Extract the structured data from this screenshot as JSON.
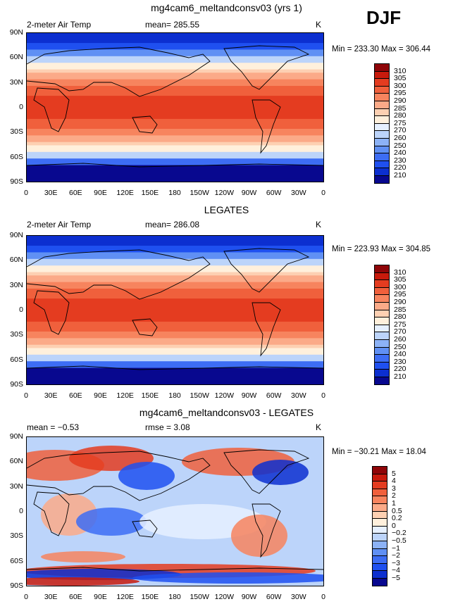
{
  "season": "DJF",
  "lat_ticks": [
    "90N",
    "60N",
    "30N",
    "0",
    "30S",
    "60S",
    "90S"
  ],
  "lon_ticks": [
    "0",
    "30E",
    "60E",
    "90E",
    "120E",
    "150E",
    "180",
    "150W",
    "120W",
    "90W",
    "60W",
    "30W",
    "0"
  ],
  "colors": {
    "abs_levels": [
      "#08088f",
      "#0c2fd0",
      "#1f50f0",
      "#3d6df4",
      "#6090f4",
      "#8cb2f6",
      "#bcd4fa",
      "#e6f0ff",
      "#fff0dc",
      "#fdd0b2",
      "#fbaa88",
      "#f7845e",
      "#f0603c",
      "#e43c20",
      "#c81a0c",
      "#8f0508"
    ],
    "diff_levels": [
      "#08088f",
      "#0c2fd0",
      "#1f50f0",
      "#3d6df4",
      "#6090f4",
      "#8cb2f6",
      "#bcd4fa",
      "#e6f0ff",
      "#fff0dc",
      "#fdd0b2",
      "#fbaa88",
      "#f7845e",
      "#f0603c",
      "#e43c20",
      "#c81a0c",
      "#8f0508"
    ]
  },
  "panels": [
    {
      "title": "mg4cam6_meltandconsv03 (yrs 1)",
      "left_label": "2-meter Air Temp",
      "mean_label": "mean= 285.55",
      "units": "K",
      "minmax": "Min = 233.30 Max = 306.44",
      "colorbar_labels": [
        "310",
        "305",
        "300",
        "295",
        "290",
        "285",
        "280",
        "275",
        "270",
        "260",
        "250",
        "240",
        "230",
        "220",
        "210"
      ]
    },
    {
      "title": "LEGATES",
      "left_label": "2-meter Air Temp",
      "mean_label": "mean= 286.08",
      "units": "K",
      "minmax": "Min = 223.93 Max = 304.85",
      "colorbar_labels": [
        "310",
        "305",
        "300",
        "295",
        "290",
        "285",
        "280",
        "275",
        "270",
        "260",
        "250",
        "240",
        "230",
        "220",
        "210"
      ]
    },
    {
      "title": "mg4cam6_meltandconsv03 - LEGATES",
      "left_label": "mean =  −0.53",
      "mean_label": "rmse =    3.08",
      "units": "K",
      "minmax": "Min = −30.21 Max =  18.04",
      "colorbar_labels": [
        "5",
        "4",
        "3",
        "2",
        "1",
        "0.5",
        "0.2",
        "0",
        "−0.2",
        "−0.5",
        "−1",
        "−2",
        "−3",
        "−4",
        "−5"
      ]
    }
  ],
  "chart_data": [
    {
      "type": "heatmap",
      "title": "mg4cam6_meltandconsv03 (yrs 1)",
      "variable": "2-meter Air Temp",
      "units": "K",
      "mean": 285.55,
      "min": 233.3,
      "max": 306.44,
      "levels": [
        210,
        220,
        230,
        240,
        250,
        260,
        270,
        275,
        280,
        285,
        290,
        295,
        300,
        305,
        310
      ],
      "xlim": [
        0,
        360
      ],
      "ylim": [
        -90,
        90
      ]
    },
    {
      "type": "heatmap",
      "title": "LEGATES",
      "variable": "2-meter Air Temp",
      "units": "K",
      "mean": 286.08,
      "min": 223.93,
      "max": 304.85,
      "levels": [
        210,
        220,
        230,
        240,
        250,
        260,
        270,
        275,
        280,
        285,
        290,
        295,
        300,
        305,
        310
      ],
      "xlim": [
        0,
        360
      ],
      "ylim": [
        -90,
        90
      ]
    },
    {
      "type": "heatmap",
      "title": "mg4cam6_meltandconsv03 - LEGATES",
      "units": "K",
      "mean": -0.53,
      "rmse": 3.08,
      "min": -30.21,
      "max": 18.04,
      "levels": [
        -5,
        -4,
        -3,
        -2,
        -1,
        -0.5,
        -0.2,
        0,
        0.2,
        0.5,
        1,
        2,
        3,
        4,
        5
      ],
      "xlim": [
        0,
        360
      ],
      "ylim": [
        -90,
        90
      ]
    }
  ]
}
